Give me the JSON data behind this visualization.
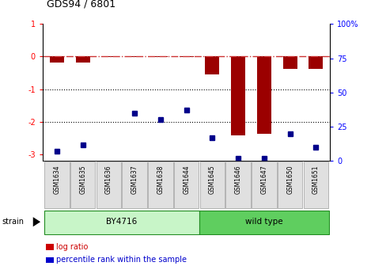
{
  "title": "GDS94 / 6801",
  "samples": [
    "GSM1634",
    "GSM1635",
    "GSM1636",
    "GSM1637",
    "GSM1638",
    "GSM1644",
    "GSM1645",
    "GSM1646",
    "GSM1647",
    "GSM1650",
    "GSM1651"
  ],
  "log_ratio": [
    -0.18,
    -0.18,
    -0.02,
    -0.02,
    -0.02,
    -0.02,
    -0.55,
    -2.42,
    -2.38,
    -0.38,
    -0.38
  ],
  "percentile_rank": [
    7,
    12,
    null,
    35,
    30,
    37,
    17,
    2,
    2,
    20,
    10
  ],
  "groups": [
    {
      "label": "BY4716",
      "start": 0,
      "end": 5,
      "color": "#c8f5c8"
    },
    {
      "label": "wild type",
      "start": 6,
      "end": 10,
      "color": "#5fce5f"
    }
  ],
  "ylim_left": [
    -3.2,
    1.0
  ],
  "ylim_right": [
    0,
    100
  ],
  "bar_color": "#9b0000",
  "dot_color": "#00008b",
  "dashed_line_color": "#cc3333",
  "dotted_line_color": "#000000",
  "right_ticks": [
    0,
    25,
    50,
    75,
    100
  ],
  "right_tick_labels": [
    "0",
    "25",
    "50",
    "75",
    "100%"
  ],
  "left_ticks": [
    -3,
    -2,
    -1,
    0,
    1
  ],
  "strain_label": "strain",
  "legend_items": [
    {
      "label": "log ratio",
      "color": "#cc0000"
    },
    {
      "label": "percentile rank within the sample",
      "color": "#0000cc"
    }
  ]
}
